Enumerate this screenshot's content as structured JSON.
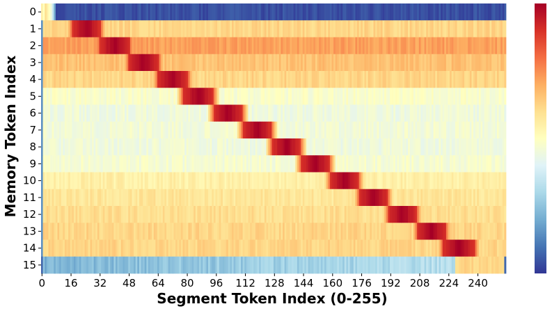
{
  "chart_data": {
    "type": "heatmap",
    "title": "",
    "xlabel": "Segment Token Index (0-255)",
    "ylabel": "Memory Token Index",
    "x_range": [
      0,
      255
    ],
    "x_ticks": [
      0,
      16,
      32,
      48,
      64,
      80,
      96,
      112,
      128,
      144,
      160,
      176,
      192,
      208,
      224,
      240
    ],
    "y_ticks": [
      0,
      1,
      2,
      3,
      4,
      5,
      6,
      7,
      8,
      9,
      10,
      11,
      12,
      13,
      14,
      15
    ],
    "colormap": "RdYlBu_r",
    "colorbar": true,
    "colorbar_ticks": [],
    "grid": false,
    "rows": [
      {
        "memory_token": 0,
        "baseline": 0.05,
        "peak_start": null,
        "peak_end": null,
        "note_start_values": [
          0.55,
          0.5,
          0.6,
          0.55,
          0.5,
          0.45,
          0.35,
          0.2
        ]
      },
      {
        "memory_token": 1,
        "baseline": 0.62,
        "peak_start": 17,
        "peak_end": 32
      },
      {
        "memory_token": 2,
        "baseline": 0.72,
        "peak_start": 32,
        "peak_end": 48
      },
      {
        "memory_token": 3,
        "baseline": 0.66,
        "peak_start": 48,
        "peak_end": 64
      },
      {
        "memory_token": 4,
        "baseline": 0.62,
        "peak_start": 64,
        "peak_end": 80
      },
      {
        "memory_token": 5,
        "baseline": 0.48,
        "peak_start": 78,
        "peak_end": 94
      },
      {
        "memory_token": 6,
        "baseline": 0.45,
        "peak_start": 95,
        "peak_end": 110
      },
      {
        "memory_token": 7,
        "baseline": 0.46,
        "peak_start": 111,
        "peak_end": 126
      },
      {
        "memory_token": 8,
        "baseline": 0.45,
        "peak_start": 127,
        "peak_end": 142
      },
      {
        "memory_token": 9,
        "baseline": 0.47,
        "peak_start": 143,
        "peak_end": 158
      },
      {
        "memory_token": 10,
        "baseline": 0.55,
        "peak_start": 159,
        "peak_end": 174
      },
      {
        "memory_token": 11,
        "baseline": 0.58,
        "peak_start": 175,
        "peak_end": 190
      },
      {
        "memory_token": 12,
        "baseline": 0.6,
        "peak_start": 191,
        "peak_end": 206
      },
      {
        "memory_token": 13,
        "baseline": 0.62,
        "peak_start": 207,
        "peak_end": 222
      },
      {
        "memory_token": 14,
        "baseline": 0.62,
        "peak_start": 221,
        "peak_end": 238
      },
      {
        "memory_token": 15,
        "baseline": 0.3,
        "peak_start": null,
        "peak_end": null,
        "tail_start": 228,
        "tail_value": 0.62
      }
    ]
  }
}
